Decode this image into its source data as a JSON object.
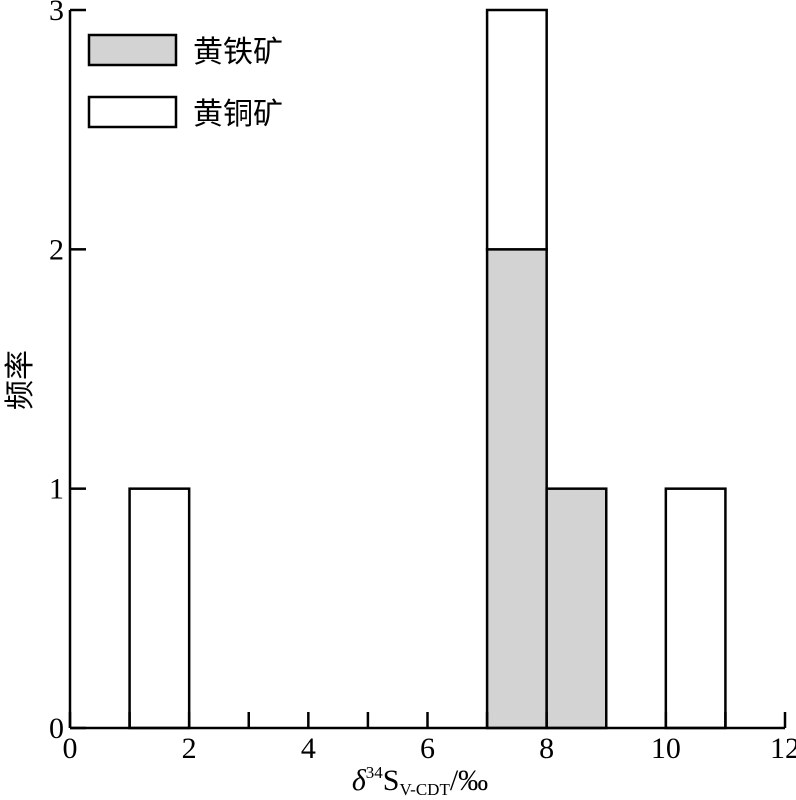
{
  "chart_data": {
    "type": "bar",
    "stacked": true,
    "bin_width": 1,
    "bin_starts": [
      1,
      7,
      8,
      10
    ],
    "series": [
      {
        "name": "黄铁矿",
        "color": "#d3d3d3",
        "values": [
          0,
          2,
          1,
          0
        ]
      },
      {
        "name": "黄铜矿",
        "color": "#ffffff",
        "values": [
          1,
          1,
          0,
          1
        ]
      }
    ],
    "xlim": [
      0,
      12
    ],
    "ylim": [
      0,
      3
    ],
    "x_ticks": [
      0,
      2,
      4,
      6,
      8,
      10,
      12
    ],
    "x_minor_ticks": [
      1,
      3,
      5,
      7,
      9,
      11
    ],
    "y_ticks": [
      0,
      1,
      2,
      3
    ],
    "ylabel": "频率",
    "xlabel": {
      "delta": "δ",
      "superscript": "34",
      "element": "S",
      "subscript": "V-CDT",
      "suffix": "/‰"
    },
    "legend_position": "top-left",
    "grid": false
  }
}
